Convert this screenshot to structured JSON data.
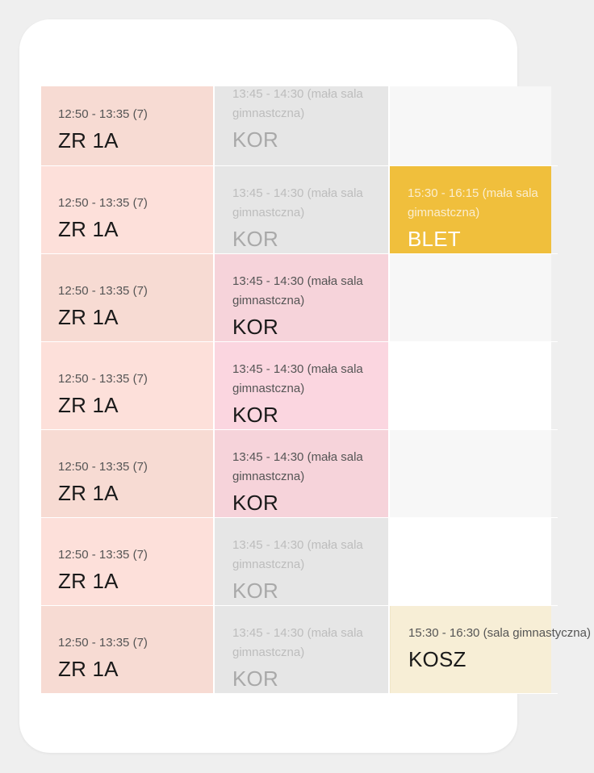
{
  "colors": {
    "zr_bg_a": "#f7dbd3",
    "zr_bg_b": "#fde0da",
    "kor_gray": "#e6e6e6",
    "kor_pink_a": "#f6d3da",
    "kor_pink_b": "#fbd6e0",
    "blet": "#f0bf3c",
    "kosz": "#f7eed6",
    "empty_a": "#f7f7f7",
    "empty_b": "#ffffff"
  },
  "rows": [
    {
      "c1": {
        "time": "12:50 - 13:35 (7)",
        "name": "ZR 1A"
      },
      "c2": {
        "time": "13:45 - 14:30 (mała sala gimnastczna)",
        "name": "KOR"
      },
      "c3": {
        "time": "",
        "name": ""
      }
    },
    {
      "c1": {
        "time": "12:50 - 13:35 (7)",
        "name": "ZR 1A"
      },
      "c2": {
        "time": "13:45 - 14:30 (mała sala gimnastczna)",
        "name": "KOR"
      },
      "c3": {
        "time": "15:30 - 16:15 (mała sala gimnastczna)",
        "name": "BLET"
      }
    },
    {
      "c1": {
        "time": "12:50 - 13:35 (7)",
        "name": "ZR 1A"
      },
      "c2": {
        "time": "13:45 - 14:30 (mała sala gimnastczna)",
        "name": "KOR"
      },
      "c3": {
        "time": "",
        "name": ""
      }
    },
    {
      "c1": {
        "time": "12:50 - 13:35 (7)",
        "name": "ZR 1A"
      },
      "c2": {
        "time": "13:45 - 14:30 (mała sala gimnastczna)",
        "name": "KOR"
      },
      "c3": {
        "time": "",
        "name": ""
      }
    },
    {
      "c1": {
        "time": "12:50 - 13:35 (7)",
        "name": "ZR 1A"
      },
      "c2": {
        "time": "13:45 - 14:30 (mała sala gimnastczna)",
        "name": "KOR"
      },
      "c3": {
        "time": "",
        "name": ""
      }
    },
    {
      "c1": {
        "time": "12:50 - 13:35 (7)",
        "name": "ZR 1A"
      },
      "c2": {
        "time": "13:45 - 14:30 (mała sala gimnastczna)",
        "name": "KOR"
      },
      "c3": {
        "time": "",
        "name": ""
      }
    },
    {
      "c1": {
        "time": "12:50 - 13:35 (7)",
        "name": "ZR 1A"
      },
      "c2": {
        "time": "13:45 - 14:30 (mała sala gimnastczna)",
        "name": "KOR"
      },
      "c3": {
        "time": "15:30 - 16:30 (sala gimnastyczna)",
        "name": "KOSZ"
      }
    }
  ]
}
